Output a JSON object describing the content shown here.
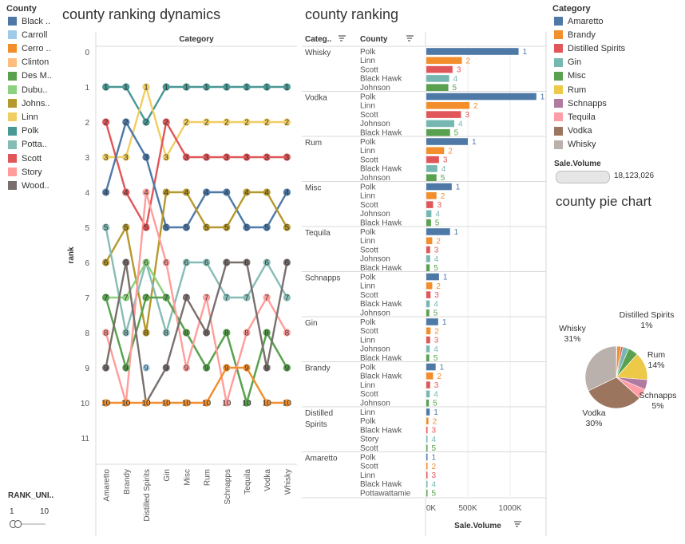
{
  "left_legend": {
    "title": "County",
    "items": [
      {
        "label": "Black ..",
        "color": "#4e79a7"
      },
      {
        "label": "Carroll",
        "color": "#a0cbe8"
      },
      {
        "label": "Cerro ..",
        "color": "#f28e2b"
      },
      {
        "label": "Clinton",
        "color": "#ffbe7d"
      },
      {
        "label": "Des M..",
        "color": "#59a14f"
      },
      {
        "label": "Dubu..",
        "color": "#8cd17d"
      },
      {
        "label": "Johns..",
        "color": "#b6992d"
      },
      {
        "label": "Linn",
        "color": "#f1ce63"
      },
      {
        "label": "Polk",
        "color": "#499894"
      },
      {
        "label": "Potta..",
        "color": "#86bcb6"
      },
      {
        "label": "Scott",
        "color": "#e15759"
      },
      {
        "label": "Story",
        "color": "#ff9d9a"
      },
      {
        "label": "Wood..",
        "color": "#79706e"
      }
    ]
  },
  "rank_filter": {
    "title": "RANK_UNI..",
    "min_label": "1",
    "max_label": "10"
  },
  "right_legend": {
    "title": "Category",
    "items": [
      {
        "label": "Amaretto",
        "color": "#4e79a7"
      },
      {
        "label": "Brandy",
        "color": "#f28e2b"
      },
      {
        "label": "Distilled Spirits",
        "color": "#e15759"
      },
      {
        "label": "Gin",
        "color": "#76b7b2"
      },
      {
        "label": "Misc",
        "color": "#59a14f"
      },
      {
        "label": "Rum",
        "color": "#edc948"
      },
      {
        "label": "Schnapps",
        "color": "#b07aa1"
      },
      {
        "label": "Tequila",
        "color": "#ff9da7"
      },
      {
        "label": "Vodka",
        "color": "#9c755f"
      },
      {
        "label": "Whisky",
        "color": "#bab0ac"
      }
    ]
  },
  "size_legend": {
    "title": "Sale.Volume",
    "value": "18,123,026"
  },
  "chart_data": [
    {
      "type": "line",
      "title": "county ranking dynamics",
      "column_header": "Category",
      "ylabel": "rank",
      "ylim": [
        0,
        11
      ],
      "y_ticks": [
        "0",
        "1",
        "2",
        "3",
        "4",
        "5",
        "6",
        "7",
        "8",
        "9",
        "10",
        "11"
      ],
      "categories": [
        "Amaretto",
        "Brandy",
        "Distilled Spirits",
        "Gin",
        "Misc",
        "Rum",
        "Schnapps",
        "Tequila",
        "Vodka",
        "Whisky"
      ],
      "series": [
        {
          "county": "Polk",
          "color": "#499894",
          "ranks": [
            1,
            1,
            2,
            1,
            1,
            1,
            1,
            1,
            1,
            1
          ]
        },
        {
          "county": "Linn",
          "color": "#f1ce63",
          "ranks": [
            3,
            3,
            1,
            3,
            2,
            2,
            2,
            2,
            2,
            2
          ]
        },
        {
          "county": "Scott",
          "color": "#e15759",
          "ranks": [
            2,
            4,
            5,
            2,
            3,
            3,
            3,
            3,
            3,
            3
          ]
        },
        {
          "county": "Black Hawk",
          "color": "#4e79a7",
          "ranks": [
            4,
            2,
            3,
            5,
            5,
            4,
            4,
            5,
            5,
            4
          ]
        },
        {
          "county": "Johnson",
          "color": "#b6992d",
          "ranks": [
            6,
            5,
            8,
            4,
            4,
            5,
            5,
            4,
            4,
            5
          ]
        },
        {
          "county": "Pottawattamie",
          "color": "#86bcb6",
          "ranks": [
            5,
            8,
            6,
            8,
            6,
            6,
            7,
            7,
            6,
            7
          ]
        },
        {
          "county": "Dubuque",
          "color": "#8cd17d",
          "ranks": [
            7,
            7,
            6,
            7,
            8,
            9,
            8,
            10,
            8,
            9
          ]
        },
        {
          "county": "Des Moines",
          "color": "#59a14f",
          "ranks": [
            7,
            9,
            7,
            7,
            8,
            9,
            8,
            10,
            8,
            9
          ]
        },
        {
          "county": "Story",
          "color": "#ff9d9a",
          "ranks": [
            8,
            10,
            4,
            6,
            9,
            7,
            10,
            8,
            7,
            8
          ]
        },
        {
          "county": "Woodbury",
          "color": "#79706e",
          "ranks": [
            9,
            6,
            10,
            9,
            7,
            8,
            6,
            6,
            9,
            6
          ]
        },
        {
          "county": "Cerro Gordo",
          "color": "#f28e2b",
          "ranks": [
            10,
            10,
            10,
            10,
            10,
            10,
            9,
            9,
            10,
            10
          ]
        },
        {
          "county": "Carroll",
          "color": "#a0cbe8",
          "ranks": [
            null,
            null,
            9,
            null,
            null,
            null,
            null,
            null,
            null,
            null
          ]
        }
      ]
    },
    {
      "type": "bar",
      "title": "county ranking",
      "header_category": "Categ..",
      "header_county": "County",
      "xlabel": "Sale.Volume",
      "x_ticks": [
        "0K",
        "500K",
        "1000K"
      ],
      "xlim": [
        0,
        1400000
      ],
      "rank_colors": [
        "#4e79a7",
        "#f28e2b",
        "#e15759",
        "#76b7b2",
        "#59a14f"
      ],
      "groups": [
        {
          "category": "Whisky",
          "counties": [
            "Polk",
            "Linn",
            "Scott",
            "Black Hawk",
            "Johnson"
          ],
          "values": [
            1090000,
            420000,
            310000,
            270000,
            260000
          ]
        },
        {
          "category": "Vodka",
          "counties": [
            "Polk",
            "Linn",
            "Scott",
            "Johnson",
            "Black Hawk"
          ],
          "values": [
            1300000,
            510000,
            410000,
            330000,
            280000
          ]
        },
        {
          "category": "Rum",
          "counties": [
            "Polk",
            "Linn",
            "Scott",
            "Black Hawk",
            "Johnson"
          ],
          "values": [
            490000,
            210000,
            150000,
            130000,
            120000
          ]
        },
        {
          "category": "Misc",
          "counties": [
            "Polk",
            "Linn",
            "Scott",
            "Johnson",
            "Black Hawk"
          ],
          "values": [
            300000,
            120000,
            80000,
            60000,
            55000
          ]
        },
        {
          "category": "Tequila",
          "counties": [
            "Polk",
            "Linn",
            "Scott",
            "Johnson",
            "Black Hawk"
          ],
          "values": [
            280000,
            70000,
            45000,
            45000,
            40000
          ]
        },
        {
          "category": "Schnapps",
          "counties": [
            "Polk",
            "Linn",
            "Scott",
            "Black Hawk",
            "Johnson"
          ],
          "values": [
            150000,
            70000,
            50000,
            40000,
            35000
          ]
        },
        {
          "category": "Gin",
          "counties": [
            "Polk",
            "Scott",
            "Linn",
            "Johnson",
            "Black Hawk"
          ],
          "values": [
            140000,
            50000,
            45000,
            40000,
            35000
          ]
        },
        {
          "category": "Brandy",
          "counties": [
            "Polk",
            "Black Hawk",
            "Linn",
            "Scott",
            "Johnson"
          ],
          "values": [
            110000,
            80000,
            45000,
            40000,
            30000
          ]
        },
        {
          "category": "Distilled Spirits",
          "counties": [
            "Linn",
            "Polk",
            "Black Hawk",
            "Story",
            "Scott"
          ],
          "values": [
            40000,
            25000,
            10000,
            8000,
            6000
          ]
        },
        {
          "category": "Amaretto",
          "counties": [
            "Polk",
            "Scott",
            "Linn",
            "Black Hawk",
            "Pottawattamie"
          ],
          "values": [
            12000,
            6000,
            5000,
            4000,
            3000
          ]
        }
      ]
    },
    {
      "type": "pie",
      "title": "county pie chart",
      "slices": [
        {
          "label": "Amaretto",
          "value": 0.3,
          "color": "#4e79a7",
          "text": ""
        },
        {
          "label": "Brandy",
          "value": 2,
          "color": "#f28e2b",
          "text": ""
        },
        {
          "label": "Distilled Spirits",
          "value": 1,
          "color": "#e15759",
          "text": "Distilled Spirits\n1%"
        },
        {
          "label": "Gin",
          "value": 3,
          "color": "#76b7b2",
          "text": ""
        },
        {
          "label": "Misc",
          "value": 5,
          "color": "#59a14f",
          "text": ""
        },
        {
          "label": "Rum",
          "value": 14,
          "color": "#edc948",
          "text": "Rum\n14%"
        },
        {
          "label": "Schnapps",
          "value": 5,
          "color": "#b07aa1",
          "text": "Schnapps\n5%"
        },
        {
          "label": "Tequila",
          "value": 5,
          "color": "#ff9da7",
          "text": ""
        },
        {
          "label": "Vodka",
          "value": 30,
          "color": "#9c755f",
          "text": "Vodka\n30%"
        },
        {
          "label": "Whisky",
          "value": 31,
          "color": "#bab0ac",
          "text": "Whisky\n31%"
        }
      ]
    }
  ]
}
